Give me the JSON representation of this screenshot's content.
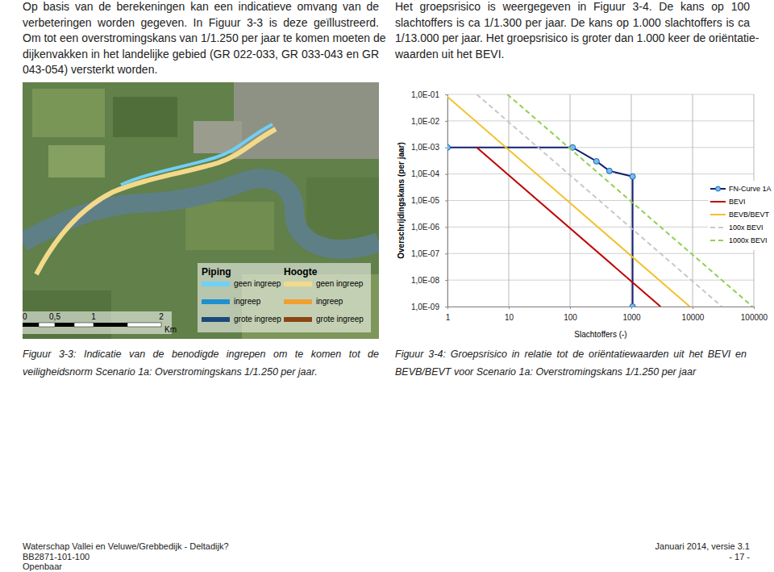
{
  "text_left": {
    "lines": [
      "Op basis van de berekeningen kan een indicatieve omvang van de",
      "verbeteringen worden gegeven. In Figuur 3-3 is deze geïllustreerd.",
      "Om tot een overstromingskans van 1/1.250 per jaar te komen moeten de",
      "dijkenvakken in het landelijke gebied (GR 022-033, GR 033-043 en GR",
      "043-054) versterkt worden."
    ]
  },
  "text_right": {
    "lines": [
      "Het groepsrisico is weergegeven in Figuur 3-4. De kans op 100",
      "slachtoffers is ca 1/1.300 per jaar. De kans op 1.000 slachtoffers is ca",
      "1/13.000 per jaar. Het groepsrisico is groter dan 1.000 keer de oriëntatie-",
      "waarden uit het BEVI."
    ]
  },
  "figure_3_3": {
    "legend": {
      "piping": "Piping",
      "hoogte": "Hoogte",
      "items": [
        "geen ingreep",
        "ingreep",
        "grote ingreep"
      ]
    },
    "scale": {
      "labels": [
        "0",
        "0,5",
        "1",
        "2"
      ],
      "unit": "Km"
    }
  },
  "chart_data": {
    "type": "line",
    "log": true,
    "grid": true,
    "legend": "right",
    "x_label": "Slachtoffers (-)",
    "y_label": "Overschrijdingskans (per jaar)",
    "xlim": [
      1,
      100000
    ],
    "ylim": [
      1e-09,
      0.1
    ],
    "xticks": [
      1,
      10,
      100,
      1000,
      10000,
      100000
    ],
    "yticks": [
      {
        "value": 0.1,
        "label": "1,0E-01"
      },
      {
        "value": 0.01,
        "label": "1,0E-02"
      },
      {
        "value": 0.001,
        "label": "1,0E-03"
      },
      {
        "value": 0.0001,
        "label": "1,0E-04"
      },
      {
        "value": 1e-05,
        "label": "1,0E-05"
      },
      {
        "value": 1e-06,
        "label": "1,0E-06"
      },
      {
        "value": 1e-07,
        "label": "1,0E-07"
      },
      {
        "value": 1e-08,
        "label": "1,0E-08"
      },
      {
        "value": 1e-09,
        "label": "1,0E-09"
      }
    ],
    "series": [
      {
        "name": "FN-Curve 1A",
        "color": "#14206e",
        "marker": "circle",
        "line_style": "solid",
        "x": [
          1,
          110,
          270,
          440,
          1050,
          1050
        ],
        "values": [
          0.001,
          0.001,
          0.0003,
          0.00013,
          8e-05,
          1e-09
        ]
      },
      {
        "name": "BEVI",
        "color": "#c00000",
        "marker": "none",
        "line_style": "solid",
        "x": [
          3,
          3000
        ],
        "values": [
          0.001,
          1e-09
        ]
      },
      {
        "name": "BEVB/BEVT",
        "color": "#f2c12e",
        "marker": "none",
        "line_style": "solid",
        "x": [
          0.9,
          9000
        ],
        "values": [
          0.1,
          1e-09
        ]
      },
      {
        "name": "100x BEVI",
        "color": "#c8c8c8",
        "marker": "none",
        "line_style": "dashed",
        "x": [
          3,
          30000
        ],
        "values": [
          0.1,
          1e-09
        ]
      },
      {
        "name": "1000x BEVI",
        "color": "#92d050",
        "marker": "none",
        "line_style": "dashed",
        "x": [
          9.5,
          95000
        ],
        "values": [
          0.1,
          1e-09
        ]
      }
    ]
  },
  "captions": {
    "figure_3_3": [
      "Figuur 3-3: Indicatie van de benodigde ingrepen om te komen tot de",
      "veiligheidsnorm Scenario 1a: Overstromingskans 1/1.250 per jaar."
    ],
    "figure_3_4": [
      "Figuur 3-4: Groepsrisico in relatie tot de oriëntatiewaarden uit het BEVI en",
      "BEVB/BEVT voor Scenario 1a: Overstromingskans 1/1.250 per jaar"
    ]
  },
  "footer": {
    "left": [
      "Waterschap Vallei en Veluwe/Grebbedijk - Deltadijk?",
      "BB2871-101-100",
      "Openbaar"
    ],
    "right": [
      "Januari 2014, versie 3.1",
      "- 17 -"
    ]
  }
}
